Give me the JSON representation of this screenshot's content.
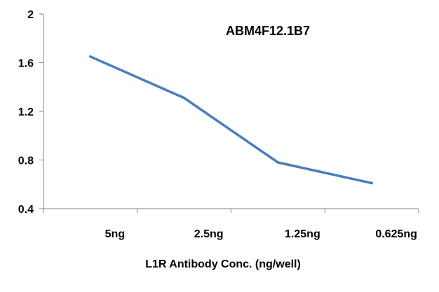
{
  "chart_data": {
    "type": "line",
    "title": "ABM4F12.1B7",
    "xlabel": "L1R Antibody Conc. (ng/well)",
    "ylabel": "",
    "categories": [
      "5ng",
      "2.5ng",
      "1.25ng",
      "0.625ng"
    ],
    "series": [
      {
        "values": [
          1.65,
          1.31,
          0.78,
          0.61
        ]
      }
    ],
    "ylim": [
      0.4,
      2
    ],
    "yticks": [
      0.4,
      0.8,
      1.2,
      1.6,
      2
    ],
    "ytick_labels": [
      "0.4",
      "0.8",
      "1.2",
      "1.6",
      "2"
    ],
    "grid": false,
    "legend": "none",
    "line_color": "#4A7EBB"
  }
}
